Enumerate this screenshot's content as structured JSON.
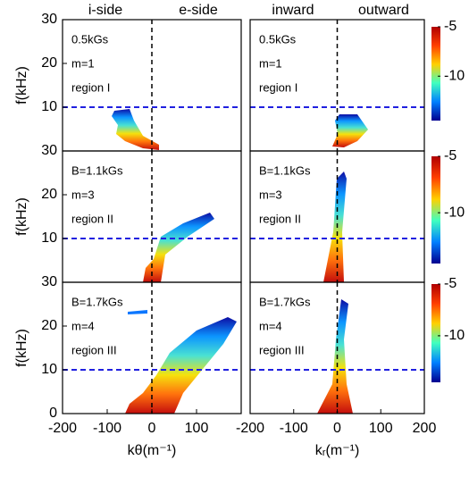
{
  "chart_data": [
    {
      "type": "heatmap",
      "side_labels": [
        "i-side",
        "e-side"
      ],
      "annotations": [
        "0.5kGs",
        "m=1",
        "region I"
      ],
      "ylabel": "f(kHz)",
      "xlim": [
        -200,
        200
      ],
      "ylim": [
        0,
        30
      ],
      "yticks": [
        10,
        20,
        30
      ],
      "hline": 10,
      "vline": 0
    },
    {
      "type": "heatmap",
      "side_labels": [
        "inward",
        "outward"
      ],
      "annotations": [
        "0.5kGs",
        "m=1",
        "region I"
      ],
      "xlim": [
        -200,
        200
      ],
      "ylim": [
        0,
        30
      ],
      "hline": 10,
      "vline": 0,
      "colorbar": {
        "lim": [
          -14.5,
          -5
        ],
        "ticks": [
          -5,
          -10
        ]
      }
    },
    {
      "type": "heatmap",
      "annotations": [
        "B=1.1kGs",
        "m=3",
        "region II"
      ],
      "ylabel": "f(kHz)",
      "xlim": [
        -200,
        200
      ],
      "ylim": [
        0,
        30
      ],
      "yticks": [
        10,
        20,
        30
      ],
      "hline": 10,
      "vline": 0
    },
    {
      "type": "heatmap",
      "annotations": [
        "B=1.1kGs",
        "m=3",
        "region II"
      ],
      "xlim": [
        -200,
        200
      ],
      "ylim": [
        0,
        30
      ],
      "hline": 10,
      "vline": 0,
      "colorbar": {
        "lim": [
          -14.5,
          -5
        ],
        "ticks": [
          -5,
          -10
        ]
      }
    },
    {
      "type": "heatmap",
      "annotations": [
        "B=1.7kGs",
        "m=4",
        "region III"
      ],
      "ylabel": "f(kHz)",
      "xlabel": "kθ(m⁻¹)",
      "xlim": [
        -200,
        200
      ],
      "ylim": [
        0,
        30
      ],
      "xticks": [
        -200,
        -100,
        0,
        100
      ],
      "yticks": [
        0,
        10,
        20,
        30
      ],
      "hline": 10,
      "vline": 0
    },
    {
      "type": "heatmap",
      "annotations": [
        "B=1.7kGs",
        "m=4",
        "region III"
      ],
      "xlabel": "kᵣ(m⁻¹)",
      "xlim": [
        -200,
        200
      ],
      "ylim": [
        0,
        30
      ],
      "xticks": [
        -200,
        -100,
        0,
        100,
        200
      ],
      "hline": 10,
      "vline": 0,
      "colorbar": {
        "lim": [
          -14.5,
          -5
        ],
        "ticks": [
          -5,
          -10
        ]
      }
    }
  ]
}
